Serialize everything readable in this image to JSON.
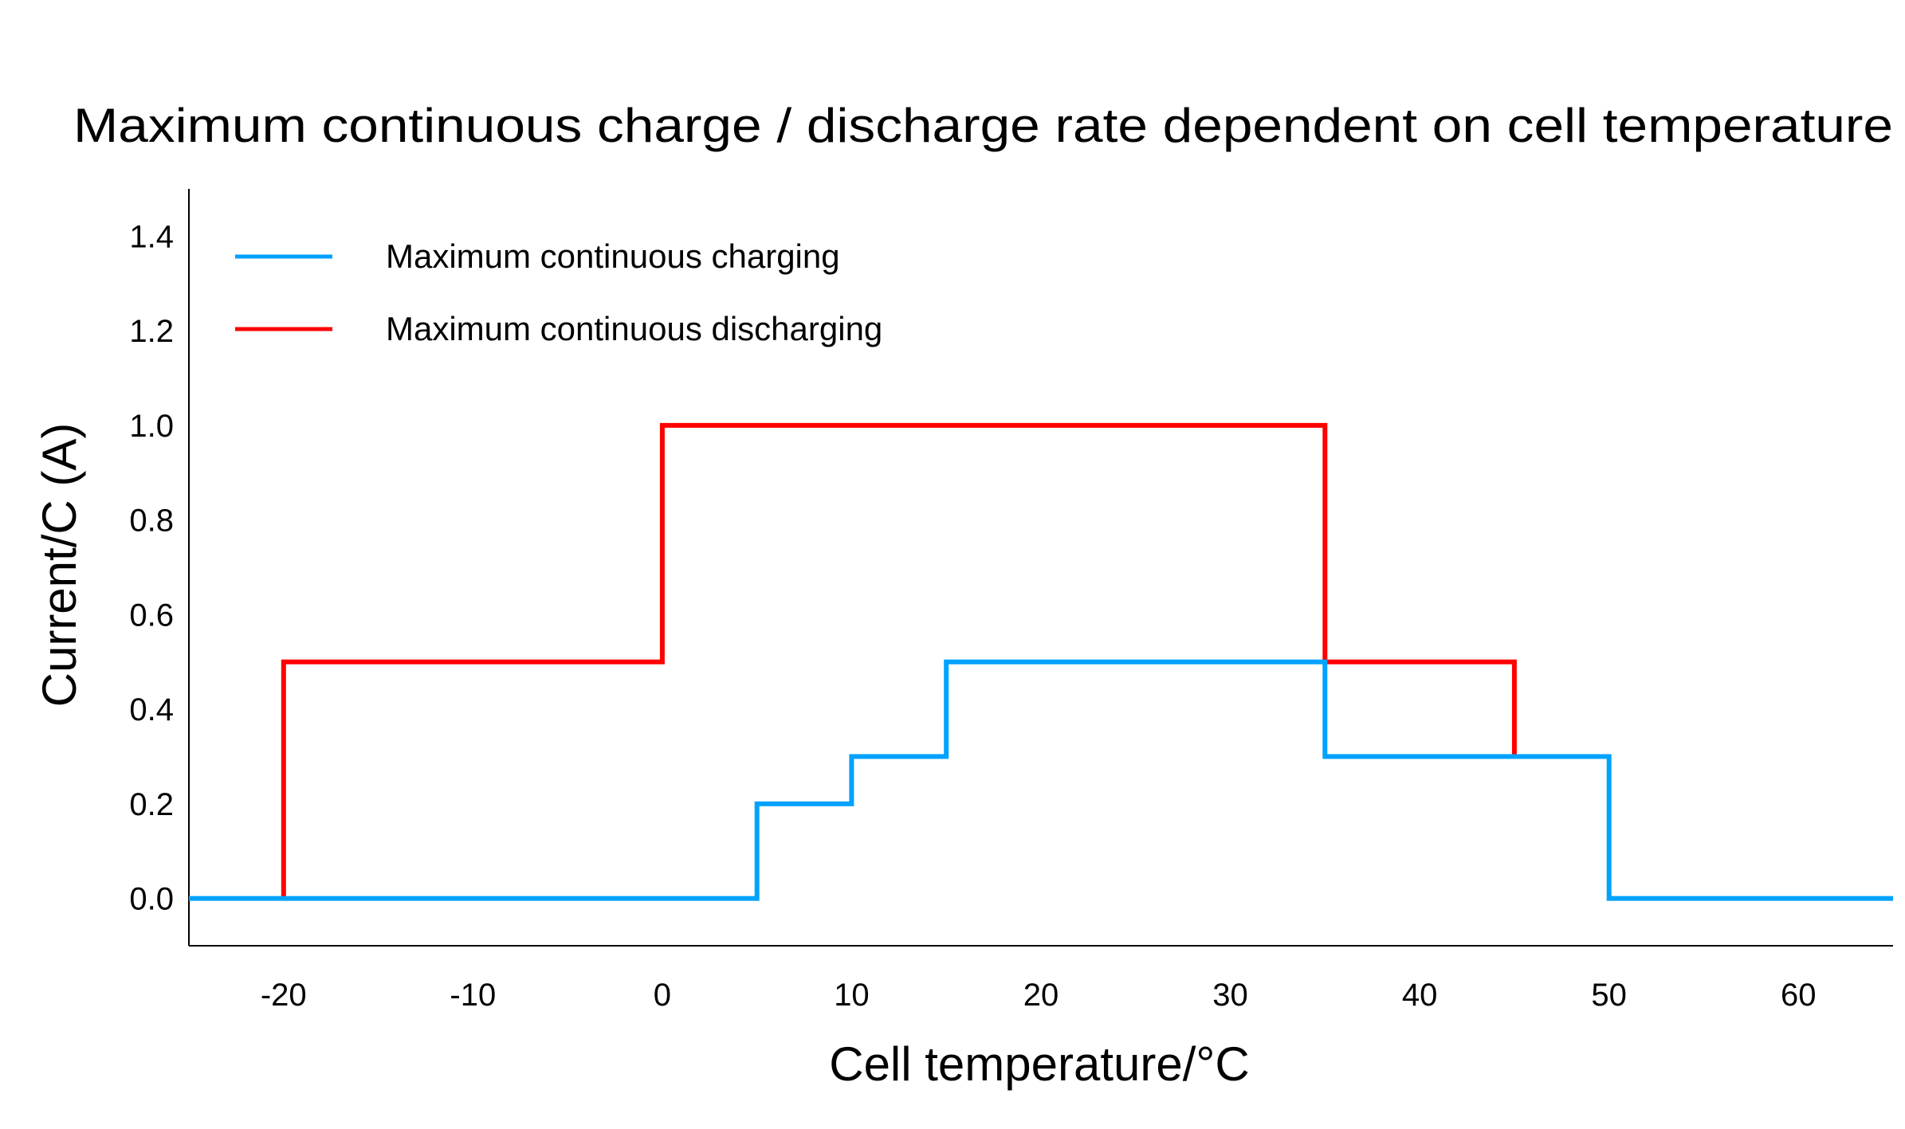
{
  "chart_data": {
    "type": "line",
    "step": true,
    "title": "Maximum continuous charge / discharge rate dependent on cell temperature",
    "xlabel": "Cell temperature/°C",
    "ylabel": "Current/C (A)",
    "xlim": [
      -25,
      65
    ],
    "ylim": [
      -0.1,
      1.5
    ],
    "xticks": [
      -20,
      -10,
      0,
      10,
      20,
      30,
      40,
      50,
      60
    ],
    "xtick_labels": [
      "-20",
      "-10",
      "0",
      "10",
      "20",
      "30",
      "40",
      "50",
      "60"
    ],
    "yticks": [
      0.0,
      0.2,
      0.4,
      0.6,
      0.8,
      1.0,
      1.2,
      1.4
    ],
    "ytick_labels": [
      "0.0",
      "0.2",
      "0.4",
      "0.6",
      "0.8",
      "1.0",
      "1.2",
      "1.4"
    ],
    "grid": false,
    "legend_position": "top-left",
    "series": [
      {
        "name": "Maximum continuous charging",
        "color": "#00a2ff",
        "points": [
          [
            -25,
            0
          ],
          [
            5,
            0
          ],
          [
            5,
            0.2
          ],
          [
            10,
            0.2
          ],
          [
            10,
            0.3
          ],
          [
            15,
            0.3
          ],
          [
            15,
            0.5
          ],
          [
            35,
            0.5
          ],
          [
            35,
            0.3
          ],
          [
            50,
            0.3
          ],
          [
            50,
            0
          ],
          [
            65,
            0
          ]
        ]
      },
      {
        "name": "Maximum continuous discharging",
        "color": "#ff0000",
        "points": [
          [
            -20,
            0
          ],
          [
            -20,
            0.5
          ],
          [
            0,
            0.5
          ],
          [
            0,
            1.0
          ],
          [
            35,
            1.0
          ],
          [
            35,
            0.5
          ],
          [
            45,
            0.5
          ],
          [
            45,
            0.3
          ]
        ]
      }
    ]
  }
}
